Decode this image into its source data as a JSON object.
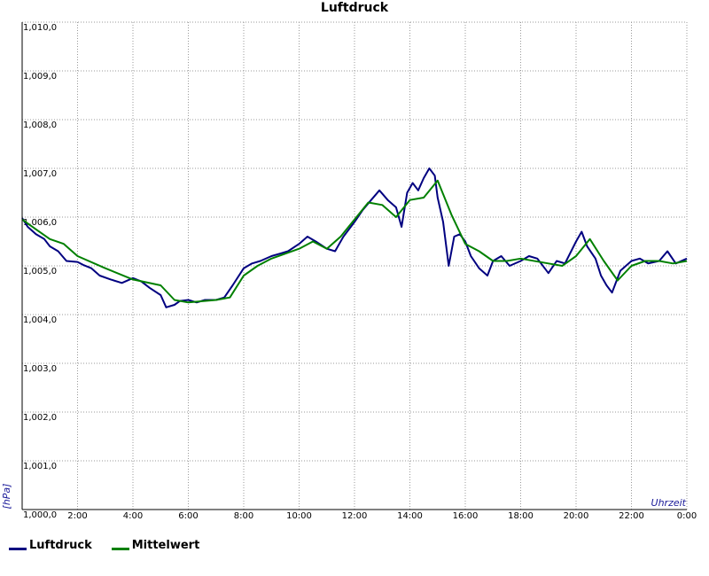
{
  "chart_data": {
    "type": "line",
    "title": "Luftdruck",
    "ylabel": "[hPa]",
    "xlabel": "Uhrzeit",
    "ylim": [
      1000.0,
      1010.0
    ],
    "xlim": [
      0,
      24
    ],
    "y_tick_labels": [
      "1,000,0",
      "1,001,0",
      "1,002,0",
      "1,003,0",
      "1,004,0",
      "1,005,0",
      "1,006,0",
      "1,007,0",
      "1,008,0",
      "1,009,0",
      "1,010,0"
    ],
    "x_tick_labels": [
      "2:00",
      "4:00",
      "6:00",
      "8:00",
      "10:00",
      "12:00",
      "14:00",
      "16:00",
      "18:00",
      "20:00",
      "22:00",
      "0:00"
    ],
    "grid": true,
    "legend": "bottom-left",
    "series": [
      {
        "name": "Luftdruck",
        "color": "#000080",
        "x": [
          0.0,
          0.2,
          0.5,
          0.8,
          1.0,
          1.3,
          1.6,
          2.0,
          2.2,
          2.5,
          2.8,
          3.2,
          3.6,
          4.0,
          4.3,
          4.6,
          5.0,
          5.2,
          5.5,
          5.7,
          6.0,
          6.3,
          6.6,
          7.0,
          7.3,
          7.6,
          8.0,
          8.3,
          8.6,
          9.0,
          9.3,
          9.6,
          10.0,
          10.3,
          10.6,
          11.0,
          11.3,
          11.6,
          12.0,
          12.3,
          12.6,
          12.9,
          13.2,
          13.5,
          13.7,
          13.9,
          14.1,
          14.3,
          14.5,
          14.7,
          14.9,
          15.0,
          15.2,
          15.4,
          15.6,
          15.8,
          16.0,
          16.2,
          16.5,
          16.8,
          17.0,
          17.3,
          17.6,
          18.0,
          18.3,
          18.6,
          19.0,
          19.3,
          19.6,
          20.0,
          20.2,
          20.4,
          20.7,
          20.9,
          21.1,
          21.3,
          21.6,
          22.0,
          22.3,
          22.6,
          23.0,
          23.3,
          23.6,
          24.0
        ],
        "y": [
          1005.98,
          1005.8,
          1005.65,
          1005.55,
          1005.4,
          1005.3,
          1005.1,
          1005.08,
          1005.02,
          1004.95,
          1004.8,
          1004.72,
          1004.65,
          1004.75,
          1004.68,
          1004.55,
          1004.4,
          1004.15,
          1004.2,
          1004.28,
          1004.3,
          1004.25,
          1004.3,
          1004.3,
          1004.35,
          1004.6,
          1004.95,
          1005.05,
          1005.1,
          1005.2,
          1005.25,
          1005.3,
          1005.45,
          1005.6,
          1005.5,
          1005.35,
          1005.3,
          1005.6,
          1005.9,
          1006.15,
          1006.35,
          1006.55,
          1006.35,
          1006.2,
          1005.8,
          1006.5,
          1006.7,
          1006.55,
          1006.8,
          1007.0,
          1006.85,
          1006.4,
          1005.9,
          1005.0,
          1005.6,
          1005.65,
          1005.5,
          1005.2,
          1004.95,
          1004.8,
          1005.1,
          1005.2,
          1005.0,
          1005.1,
          1005.2,
          1005.15,
          1004.85,
          1005.1,
          1005.05,
          1005.5,
          1005.7,
          1005.4,
          1005.15,
          1004.8,
          1004.6,
          1004.45,
          1004.9,
          1005.1,
          1005.15,
          1005.05,
          1005.1,
          1005.3,
          1005.05,
          1005.15
        ]
      },
      {
        "name": "Mittelwert",
        "color": "#008000",
        "x": [
          0.0,
          0.5,
          1.0,
          1.5,
          2.0,
          3.0,
          4.0,
          5.0,
          5.5,
          6.0,
          7.0,
          7.5,
          8.0,
          8.5,
          9.0,
          10.0,
          10.5,
          11.0,
          11.5,
          12.0,
          12.5,
          13.0,
          13.5,
          14.0,
          14.5,
          15.0,
          15.5,
          16.0,
          16.5,
          17.0,
          17.5,
          18.0,
          19.0,
          19.5,
          20.0,
          20.5,
          21.0,
          21.5,
          22.0,
          22.5,
          23.0,
          23.5,
          24.0
        ],
        "y": [
          1005.95,
          1005.75,
          1005.55,
          1005.45,
          1005.2,
          1004.95,
          1004.72,
          1004.6,
          1004.3,
          1004.25,
          1004.3,
          1004.35,
          1004.8,
          1005.0,
          1005.15,
          1005.35,
          1005.5,
          1005.35,
          1005.6,
          1005.95,
          1006.3,
          1006.25,
          1006.0,
          1006.35,
          1006.4,
          1006.75,
          1006.05,
          1005.45,
          1005.3,
          1005.1,
          1005.1,
          1005.15,
          1005.05,
          1005.0,
          1005.2,
          1005.55,
          1005.1,
          1004.7,
          1005.0,
          1005.1,
          1005.1,
          1005.05,
          1005.1
        ]
      }
    ]
  },
  "legend": {
    "items": [
      {
        "label": "Luftdruck",
        "color": "#000080"
      },
      {
        "label": "Mittelwert",
        "color": "#008000"
      }
    ]
  }
}
